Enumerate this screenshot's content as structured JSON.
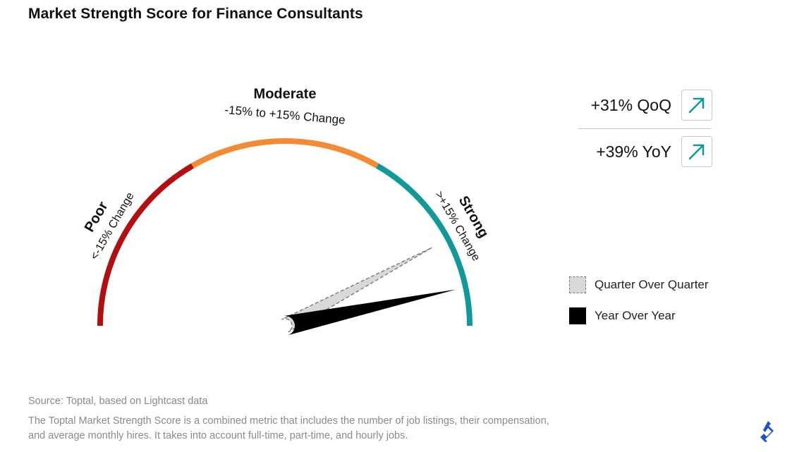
{
  "title": "Market Strength Score for Finance Consultants",
  "chart_data": {
    "type": "gauge",
    "scale": {
      "min": -45,
      "max": 45
    },
    "zones": [
      {
        "label": "Poor",
        "range_label": "<-15% Change",
        "from": -45,
        "to": -15,
        "color": "#b30f12"
      },
      {
        "label": "Moderate",
        "range_label": "-15% to +15% Change",
        "from": -15,
        "to": 15,
        "color": "#f58a34"
      },
      {
        "label": "Strong",
        "range_label": ">+15% Change",
        "from": 15,
        "to": 45,
        "color": "#11999a"
      }
    ],
    "needles": [
      {
        "name": "Quarter Over Quarter",
        "value": 31,
        "style": "dashed-gray",
        "color": "#d9d9d9"
      },
      {
        "name": "Year Over Year",
        "value": 39,
        "style": "solid-black",
        "color": "#000000"
      }
    ]
  },
  "stats": [
    {
      "label": "+31% QoQ",
      "icon": "arrow-up-right-icon",
      "color": "#11999a"
    },
    {
      "label": "+39% YoY",
      "icon": "arrow-up-right-icon",
      "color": "#11999a"
    }
  ],
  "legend": [
    {
      "label": "Quarter Over Quarter"
    },
    {
      "label": "Year Over Year"
    }
  ],
  "footer": {
    "source": "Source: Toptal, based on Lightcast data",
    "note_line1": "The Toptal Market Strength Score is a combined metric that includes the number of job listings, their compensation,",
    "note_line2": "and average monthly hires. It takes into account full-time, part-time, and hourly jobs."
  },
  "logo": {
    "icon": "toptal-logo-icon",
    "color": "#204ecf"
  }
}
